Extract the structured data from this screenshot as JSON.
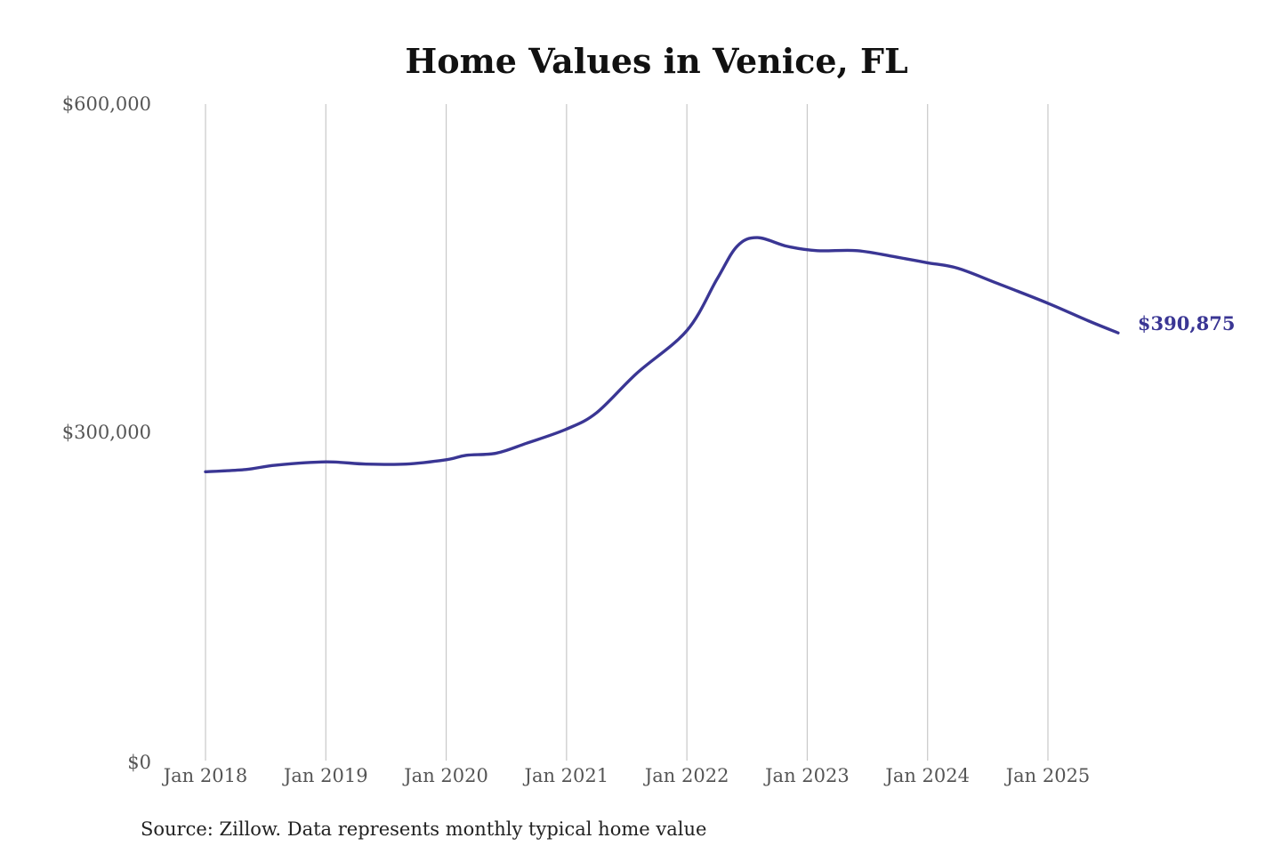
{
  "chart_data": {
    "type": "line",
    "title": "Home Values in Venice, FL",
    "xlabel": "",
    "ylabel": "",
    "ylim": [
      0,
      600000
    ],
    "y_ticks": [
      0,
      300000,
      600000
    ],
    "y_tick_labels": [
      "$0",
      "$300,000",
      "$600,000"
    ],
    "x_ticks": [
      "2018-01",
      "2019-01",
      "2020-01",
      "2021-01",
      "2022-01",
      "2023-01",
      "2024-01",
      "2025-01"
    ],
    "x_tick_labels": [
      "Jan 2018",
      "Jan 2019",
      "Jan 2020",
      "Jan 2021",
      "Jan 2022",
      "Jan 2023",
      "Jan 2024",
      "Jan 2025"
    ],
    "grid": "vertical",
    "series": [
      {
        "color": "#3a3694",
        "points": [
          {
            "x": "2018-01",
            "y": 264000
          },
          {
            "x": "2018-05",
            "y": 266000
          },
          {
            "x": "2018-08",
            "y": 270000
          },
          {
            "x": "2019-01",
            "y": 273000
          },
          {
            "x": "2019-05",
            "y": 271000
          },
          {
            "x": "2019-09",
            "y": 271000
          },
          {
            "x": "2020-01",
            "y": 275000
          },
          {
            "x": "2020-03",
            "y": 279000
          },
          {
            "x": "2020-06",
            "y": 281000
          },
          {
            "x": "2020-09",
            "y": 290000
          },
          {
            "x": "2021-01",
            "y": 303000
          },
          {
            "x": "2021-04",
            "y": 318000
          },
          {
            "x": "2021-08",
            "y": 354000
          },
          {
            "x": "2022-01",
            "y": 393000
          },
          {
            "x": "2022-04",
            "y": 440000
          },
          {
            "x": "2022-06",
            "y": 470000
          },
          {
            "x": "2022-08",
            "y": 478000
          },
          {
            "x": "2022-11",
            "y": 470000
          },
          {
            "x": "2023-02",
            "y": 466000
          },
          {
            "x": "2023-06",
            "y": 466000
          },
          {
            "x": "2023-10",
            "y": 460000
          },
          {
            "x": "2024-01",
            "y": 455000
          },
          {
            "x": "2024-04",
            "y": 450000
          },
          {
            "x": "2024-08",
            "y": 436000
          },
          {
            "x": "2025-01",
            "y": 418000
          },
          {
            "x": "2025-05",
            "y": 402000
          },
          {
            "x": "2025-08",
            "y": 390875
          }
        ]
      }
    ],
    "end_label": "$390,875",
    "source": "Source: Zillow. Data represents monthly typical home value"
  }
}
